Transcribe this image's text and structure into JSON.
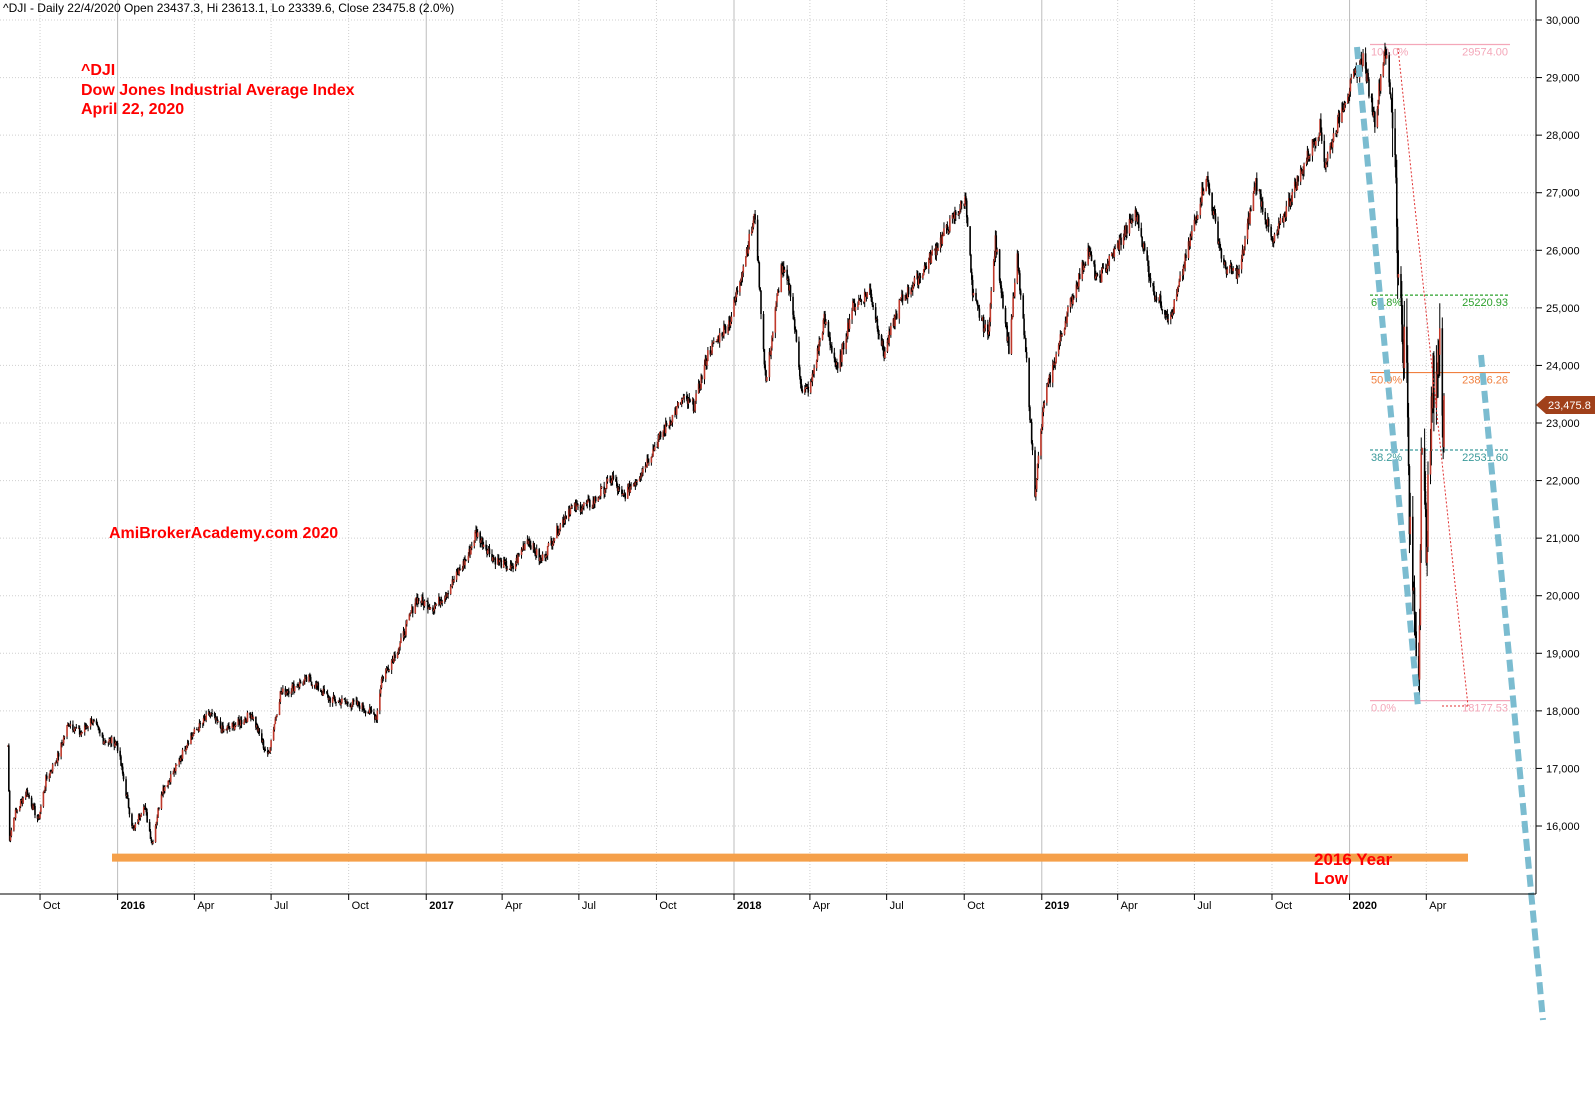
{
  "header": "^DJI - Daily 22/4/2020 Open 23437.3, Hi 23613.1, Lo 23339.6, Close 23475.8 (2.0%)",
  "annotations": {
    "ticker": "^DJI",
    "index_name": "Dow Jones Industrial Average Index",
    "date": "April 22, 2020",
    "watermark": "AmiBrokerAcademy.com  2020",
    "support_label_1": "2016 Year",
    "support_label_2": "Low"
  },
  "last_price_label": "23,475.8",
  "colors": {
    "bull": "#c0392b",
    "bear": "#000000",
    "support": "#f5a04a",
    "trendline": "#7bbcd0",
    "fib_100": "#f4a7b9",
    "fib_618": "#2ca02c",
    "fib_500": "#f08040",
    "fib_382": "#3a9a9a",
    "fib_0": "#f4a7b9",
    "price_tag": "#a0401a",
    "grid": "#cfcfcf"
  },
  "chart_data": {
    "type": "candlestick",
    "ylim": [
      15300,
      30300
    ],
    "y_ticks": [
      "16,000",
      "17,000",
      "18,000",
      "19,000",
      "20,000",
      "21,000",
      "22,000",
      "23,000",
      "24,000",
      "25,000",
      "26,000",
      "27,000",
      "28,000",
      "29,000",
      "30,000"
    ],
    "x_ticks": [
      {
        "label": "Oct",
        "bold": false,
        "date": "2015-10-01"
      },
      {
        "label": "2016",
        "bold": true,
        "date": "2016-01-01"
      },
      {
        "label": "Apr",
        "bold": false,
        "date": "2016-04-01"
      },
      {
        "label": "Jul",
        "bold": false,
        "date": "2016-07-01"
      },
      {
        "label": "Oct",
        "bold": false,
        "date": "2016-10-01"
      },
      {
        "label": "2017",
        "bold": true,
        "date": "2017-01-01"
      },
      {
        "label": "Apr",
        "bold": false,
        "date": "2017-04-01"
      },
      {
        "label": "Jul",
        "bold": false,
        "date": "2017-07-01"
      },
      {
        "label": "Oct",
        "bold": false,
        "date": "2017-10-01"
      },
      {
        "label": "2018",
        "bold": true,
        "date": "2018-01-01"
      },
      {
        "label": "Apr",
        "bold": false,
        "date": "2018-04-01"
      },
      {
        "label": "Jul",
        "bold": false,
        "date": "2018-07-01"
      },
      {
        "label": "Oct",
        "bold": false,
        "date": "2018-10-01"
      },
      {
        "label": "2019",
        "bold": true,
        "date": "2019-01-01"
      },
      {
        "label": "Apr",
        "bold": false,
        "date": "2019-04-01"
      },
      {
        "label": "Jul",
        "bold": false,
        "date": "2019-07-01"
      },
      {
        "label": "Oct",
        "bold": false,
        "date": "2019-10-01"
      },
      {
        "label": "2020",
        "bold": true,
        "date": "2020-01-01"
      },
      {
        "label": "Apr",
        "bold": false,
        "date": "2020-04-01"
      }
    ],
    "series": [
      {
        "points": [
          [
            "2015-08-24",
            17400
          ],
          [
            "2015-08-26",
            15800
          ],
          [
            "2015-09-01",
            16200
          ],
          [
            "2015-09-15",
            16600
          ],
          [
            "2015-09-29",
            16100
          ],
          [
            "2015-10-08",
            16800
          ],
          [
            "2015-10-22",
            17200
          ],
          [
            "2015-11-04",
            17800
          ],
          [
            "2015-11-18",
            17600
          ],
          [
            "2015-12-01",
            17850
          ],
          [
            "2015-12-15",
            17500
          ],
          [
            "2015-12-31",
            17450
          ],
          [
            "2016-01-12",
            16500
          ],
          [
            "2016-01-20",
            15900
          ],
          [
            "2016-02-01",
            16400
          ],
          [
            "2016-02-11",
            15700
          ],
          [
            "2016-02-22",
            16600
          ],
          [
            "2016-03-10",
            17000
          ],
          [
            "2016-03-25",
            17500
          ],
          [
            "2016-04-20",
            17950
          ],
          [
            "2016-05-05",
            17650
          ],
          [
            "2016-05-25",
            17800
          ],
          [
            "2016-06-08",
            17950
          ],
          [
            "2016-06-27",
            17200
          ],
          [
            "2016-07-12",
            18300
          ],
          [
            "2016-08-15",
            18550
          ],
          [
            "2016-09-09",
            18200
          ],
          [
            "2016-10-14",
            18100
          ],
          [
            "2016-11-03",
            17900
          ],
          [
            "2016-11-09",
            18550
          ],
          [
            "2016-12-01",
            19150
          ],
          [
            "2016-12-20",
            19950
          ],
          [
            "2017-01-10",
            19800
          ],
          [
            "2017-01-25",
            20050
          ],
          [
            "2017-02-20",
            20700
          ],
          [
            "2017-03-01",
            21100
          ],
          [
            "2017-03-22",
            20650
          ],
          [
            "2017-04-13",
            20450
          ],
          [
            "2017-05-01",
            21000
          ],
          [
            "2017-05-17",
            20600
          ],
          [
            "2017-06-19",
            21500
          ],
          [
            "2017-07-17",
            21600
          ],
          [
            "2017-08-10",
            22050
          ],
          [
            "2017-08-21",
            21700
          ],
          [
            "2017-09-11",
            22100
          ],
          [
            "2017-10-05",
            22750
          ],
          [
            "2017-11-01",
            23400
          ],
          [
            "2017-11-15",
            23300
          ],
          [
            "2017-12-01",
            24200
          ],
          [
            "2017-12-28",
            24800
          ],
          [
            "2018-01-16",
            26000
          ],
          [
            "2018-01-26",
            26600
          ],
          [
            "2018-02-05",
            24300
          ],
          [
            "2018-02-08",
            23700
          ],
          [
            "2018-02-26",
            25700
          ],
          [
            "2018-03-09",
            25300
          ],
          [
            "2018-03-23",
            23500
          ],
          [
            "2018-04-02",
            23650
          ],
          [
            "2018-04-18",
            24800
          ],
          [
            "2018-05-04",
            23900
          ],
          [
            "2018-05-21",
            25000
          ],
          [
            "2018-06-11",
            25300
          ],
          [
            "2018-06-28",
            24200
          ],
          [
            "2018-07-17",
            25100
          ],
          [
            "2018-08-09",
            25550
          ],
          [
            "2018-09-20",
            26600
          ],
          [
            "2018-10-03",
            26900
          ],
          [
            "2018-10-11",
            25200
          ],
          [
            "2018-10-29",
            24500
          ],
          [
            "2018-11-07",
            26150
          ],
          [
            "2018-11-23",
            24300
          ],
          [
            "2018-12-03",
            25850
          ],
          [
            "2018-12-14",
            24050
          ],
          [
            "2018-12-24",
            21800
          ],
          [
            "2019-01-04",
            23400
          ],
          [
            "2019-01-31",
            24900
          ],
          [
            "2019-02-25",
            26000
          ],
          [
            "2019-03-08",
            25450
          ],
          [
            "2019-04-23",
            26650
          ],
          [
            "2019-05-13",
            25300
          ],
          [
            "2019-06-03",
            24800
          ],
          [
            "2019-07-15",
            27300
          ],
          [
            "2019-08-05",
            25700
          ],
          [
            "2019-08-23",
            25600
          ],
          [
            "2019-09-12",
            27200
          ],
          [
            "2019-10-02",
            26100
          ],
          [
            "2019-10-28",
            27100
          ],
          [
            "2019-11-27",
            28150
          ],
          [
            "2019-12-03",
            27500
          ],
          [
            "2019-12-27",
            28650
          ],
          [
            "2020-01-17",
            29350
          ],
          [
            "2020-01-31",
            28250
          ],
          [
            "2020-02-12",
            29550
          ],
          [
            "2020-02-24",
            27900
          ],
          [
            "2020-02-28",
            25400
          ],
          [
            "2020-03-09",
            23850
          ],
          [
            "2020-03-12",
            21200
          ],
          [
            "2020-03-16",
            20200
          ],
          [
            "2020-03-23",
            18590
          ],
          [
            "2020-03-26",
            22550
          ],
          [
            "2020-04-01",
            20950
          ],
          [
            "2020-04-09",
            23720
          ],
          [
            "2020-04-17",
            24240
          ],
          [
            "2020-04-21",
            23020
          ],
          [
            "2020-04-22",
            23475
          ]
        ]
      }
    ],
    "fibonacci": [
      {
        "label": "100.0%",
        "value": 29574.0,
        "value_label": "29574.00"
      },
      {
        "label": "61.8%",
        "value": 25220.93,
        "value_label": "25220.93"
      },
      {
        "label": "50.0%",
        "value": 23876.26,
        "value_label": "23876.26"
      },
      {
        "label": "38.2%",
        "value": 22531.6,
        "value_label": "22531.60"
      },
      {
        "label": "0.0%",
        "value": 18177.53,
        "value_label": "18177.53"
      }
    ],
    "support_level": 15450,
    "last_close": 23475.8
  }
}
